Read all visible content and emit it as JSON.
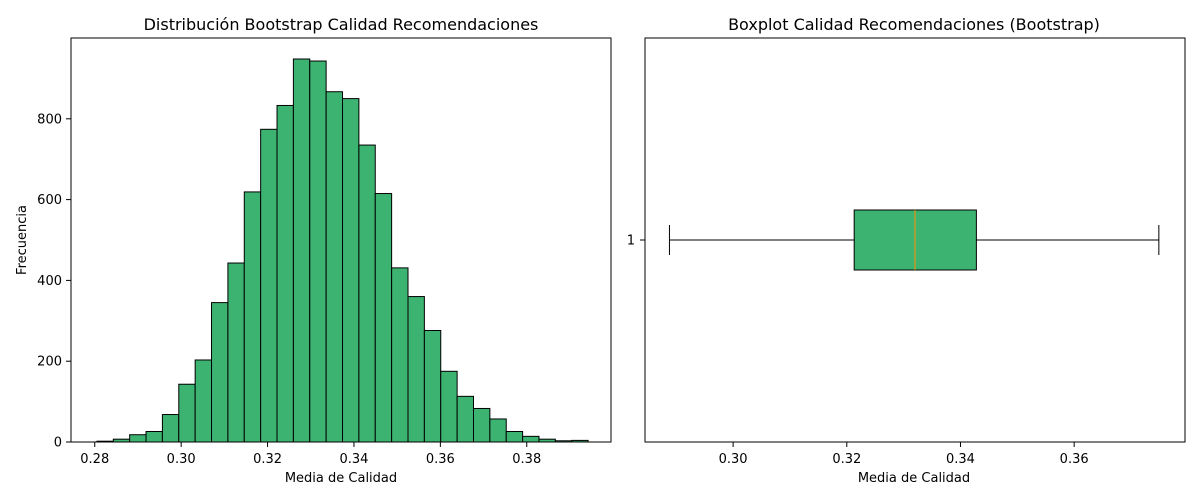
{
  "chart_data": [
    {
      "type": "bar",
      "title": "Distribución Bootstrap Calidad Recomendaciones",
      "xlabel": "Media de Calidad",
      "ylabel": "Frecuencia",
      "xlim": [
        0.2745,
        0.3995
      ],
      "ylim": [
        0,
        1000
      ],
      "xticks": [
        0.28,
        0.3,
        0.32,
        0.34,
        0.36,
        0.38
      ],
      "xtick_labels": [
        "0.28",
        "0.30",
        "0.32",
        "0.34",
        "0.36",
        "0.38"
      ],
      "yticks": [
        0,
        200,
        400,
        600,
        800
      ],
      "ytick_labels": [
        "0",
        "200",
        "400",
        "600",
        "800"
      ],
      "bin_start": 0.2805,
      "bin_width": 0.00379,
      "values": [
        2,
        7,
        18,
        26,
        68,
        143,
        203,
        345,
        443,
        619,
        774,
        833,
        948,
        943,
        867,
        850,
        735,
        615,
        431,
        360,
        276,
        175,
        113,
        83,
        57,
        26,
        14,
        7,
        3,
        4
      ],
      "colors": {
        "fill": "#3cb371",
        "edge": "#000000"
      }
    },
    {
      "type": "boxplot",
      "title": "Boxplot Calidad Recomendaciones (Bootstrap)",
      "xlabel": "Media de Calidad",
      "xlim": [
        0.2845,
        0.3795
      ],
      "xticks": [
        0.3,
        0.32,
        0.34,
        0.36
      ],
      "xtick_labels": [
        "0.30",
        "0.32",
        "0.34",
        "0.36"
      ],
      "ytick_labels": [
        "1"
      ],
      "box": {
        "whisker_low": 0.2888,
        "q1": 0.3213,
        "median": 0.332,
        "q3": 0.3428,
        "whisker_high": 0.3749
      },
      "colors": {
        "fill": "#3cb371",
        "edge": "#000000",
        "median": "#ff8c00"
      }
    }
  ]
}
